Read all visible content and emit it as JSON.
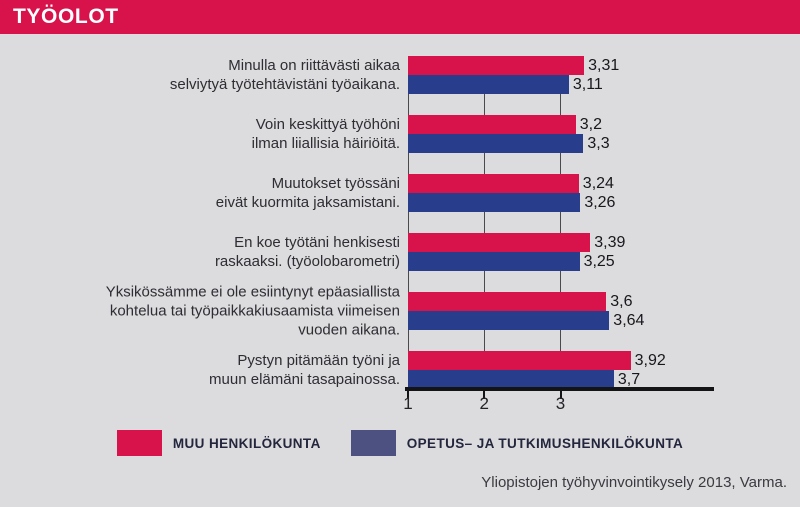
{
  "header": {
    "title": "TYÖOLOT",
    "bg_color": "#d8124a",
    "text_color": "#ffffff"
  },
  "footer": {
    "source": "Yliopistojen työhyvinvointikysely 2013, Varma."
  },
  "colors": {
    "background": "#dcdcde",
    "accent_crimson": "#d8124a",
    "bar_navy": "#293d8d",
    "legend_slate": "#4d5181",
    "axis_black": "#141416"
  },
  "chart_data": {
    "type": "bar",
    "orientation": "horizontal",
    "title": "TYÖOLOT",
    "categories": [
      [
        "Minulla on riittävästi aikaa",
        "selviytyä työtehtävistäni työaikana."
      ],
      [
        "Voin keskittyä työhöni",
        "ilman liiallisia häiriöitä."
      ],
      [
        "Muutokset työssäni",
        "eivät kuormita jaksamistani."
      ],
      [
        "En koe työtäni henkisesti",
        "raskaaksi. (työolobarometri)"
      ],
      [
        "Yksikössämme ei ole esiintynyt epäasiallista",
        "kohtelua tai työpaikkakiusaamista viimeisen",
        "vuoden aikana."
      ],
      [
        "Pystyn pitämään työni ja",
        "muun elämäni tasapainossa."
      ]
    ],
    "series": [
      {
        "name": "MUU HENKILÖKUNTA",
        "color": "#d8124a",
        "legend_color": "#d8124a",
        "values": [
          3.31,
          3.2,
          3.24,
          3.39,
          3.6,
          3.92
        ],
        "value_labels": [
          "3,31",
          "3,2",
          "3,24",
          "3,39",
          "3,6",
          "3,92"
        ]
      },
      {
        "name": "OPETUS– JA TUTKIMUSHENKILÖKUNTA",
        "color": "#293d8d",
        "legend_color": "#4d5181",
        "values": [
          3.11,
          3.3,
          3.26,
          3.25,
          3.64,
          3.7
        ],
        "value_labels": [
          "3,11",
          "3,3",
          "3,26",
          "3,25",
          "3,64",
          "3,7"
        ]
      }
    ],
    "xlim": [
      1,
      5
    ],
    "xticks": [
      1,
      2,
      3
    ],
    "grid": true,
    "legend_position": "bottom"
  }
}
